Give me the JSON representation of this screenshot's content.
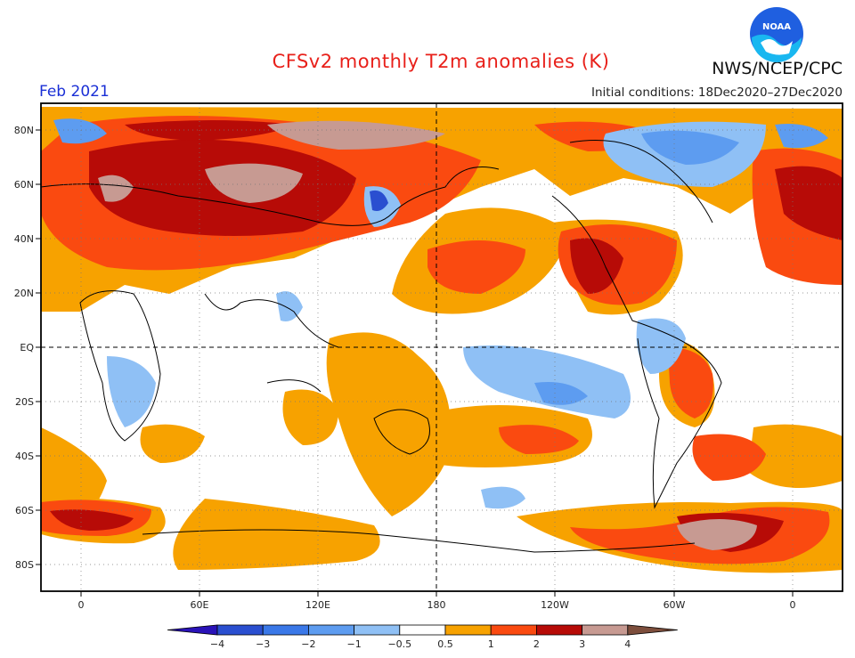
{
  "header": {
    "title": "CFSv2 monthly T2m anomalies (K)",
    "month": "Feb 2021",
    "initial_conditions": "Initial conditions: 18Dec2020–27Dec2020",
    "agency": "NWS/NCEP/CPC",
    "logo_text": "NOAA"
  },
  "axes": {
    "lat_labels": [
      "80N",
      "60N",
      "40N",
      "20N",
      "EQ",
      "20S",
      "40S",
      "60S",
      "80S"
    ],
    "lon_labels": [
      "0",
      "60E",
      "120E",
      "180",
      "120W",
      "60W",
      "0"
    ]
  },
  "colorbar": {
    "labels": [
      "−4",
      "−3",
      "−2",
      "−1",
      "−0.5",
      "0.5",
      "1",
      "2",
      "3",
      "4"
    ],
    "colors": [
      "#2a13b8",
      "#2a4fd0",
      "#3a78e8",
      "#5d9cf0",
      "#8fc0f5",
      "#ffffff",
      "#f7a200",
      "#fa4a10",
      "#b70b07",
      "#c79a92",
      "#7d4e3c"
    ]
  }
}
